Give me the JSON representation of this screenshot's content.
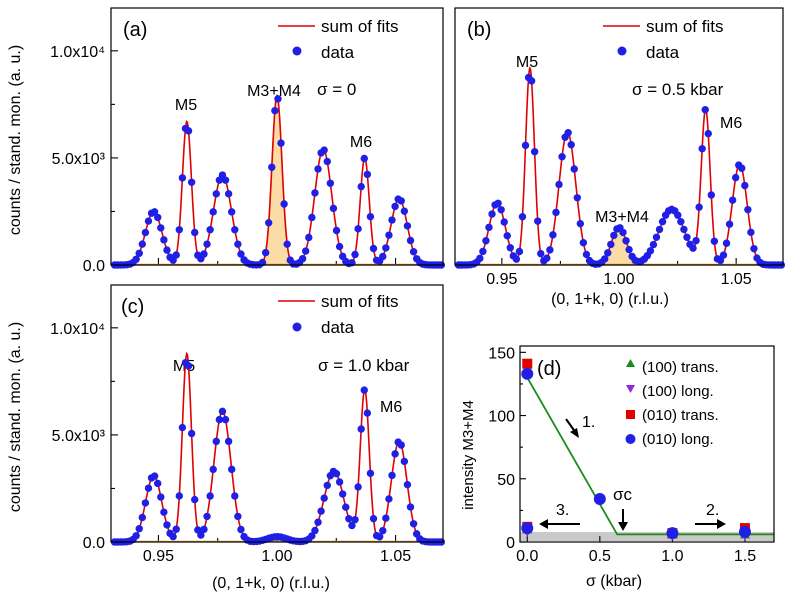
{
  "figure": {
    "y_axis_title": "counts / stand. mon. (a. u.)",
    "legend": {
      "fit": "sum of fits",
      "data": "data"
    }
  },
  "chart_data": [
    {
      "id": "a",
      "type": "line",
      "label": "(a)",
      "annotation": "σ = 0",
      "xlim": [
        0.93,
        1.07
      ],
      "ylim": [
        0,
        12000
      ],
      "yticks": [
        0,
        5000,
        10000
      ],
      "ytick_labels": [
        "0.0",
        "5.0x10³",
        "1.0x10⁴"
      ],
      "peaks": [
        {
          "label": "M5",
          "x": 0.962,
          "y": 7000
        },
        {
          "label": "M3+M4",
          "x": 1.0,
          "y": 8000
        },
        {
          "label": "M6",
          "x": 1.037,
          "y": 5300
        }
      ],
      "components": [
        {
          "center": 0.948,
          "height": 2500,
          "sigma": 0.0035
        },
        {
          "center": 0.962,
          "height": 6700,
          "sigma": 0.0019
        },
        {
          "center": 0.977,
          "height": 4200,
          "sigma": 0.0038
        },
        {
          "center": 1.0,
          "height": 7900,
          "sigma": 0.0021,
          "shaded": true
        },
        {
          "center": 1.0195,
          "height": 5400,
          "sigma": 0.0036
        },
        {
          "center": 1.037,
          "height": 5000,
          "sigma": 0.0019
        },
        {
          "center": 1.0515,
          "height": 3100,
          "sigma": 0.0034
        }
      ]
    },
    {
      "id": "b",
      "type": "line",
      "label": "(b)",
      "annotation": "σ = 0.5 kbar",
      "xlim": [
        0.93,
        1.07
      ],
      "ylim": [
        0,
        12000
      ],
      "xticks": [
        0.95,
        1.0,
        1.05
      ],
      "xtick_labels": [
        "0.95",
        "1.00",
        "1.05"
      ],
      "xlabel": "(0, 1+k, 0) (r.l.u.)",
      "peaks": [
        {
          "label": "M5",
          "x": 0.962,
          "y": 9500
        },
        {
          "label": "M3+M4",
          "x": 1.0,
          "y": 1800
        },
        {
          "label": "M6",
          "x": 1.037,
          "y": 7400
        }
      ],
      "components": [
        {
          "center": 0.948,
          "height": 2900,
          "sigma": 0.0035
        },
        {
          "center": 0.962,
          "height": 9200,
          "sigma": 0.0019
        },
        {
          "center": 0.978,
          "height": 6200,
          "sigma": 0.0036
        },
        {
          "center": 1.0,
          "height": 1750,
          "sigma": 0.0032,
          "shaded": true
        },
        {
          "center": 1.0225,
          "height": 2600,
          "sigma": 0.0055
        },
        {
          "center": 1.037,
          "height": 7200,
          "sigma": 0.0019
        },
        {
          "center": 1.0515,
          "height": 4700,
          "sigma": 0.0032
        }
      ]
    },
    {
      "id": "c",
      "type": "line",
      "label": "(c)",
      "annotation": "σ = 1.0 kbar",
      "xlim": [
        0.93,
        1.07
      ],
      "ylim": [
        0,
        12000
      ],
      "yticks": [
        0,
        5000,
        10000
      ],
      "ytick_labels": [
        "0.0",
        "5.0x10³",
        "1.0x10⁴"
      ],
      "xticks": [
        0.95,
        1.0,
        1.05
      ],
      "xtick_labels": [
        "0.95",
        "1.00",
        "1.05"
      ],
      "xlabel": "(0, 1+k, 0) (r.l.u.)",
      "peaks": [
        {
          "label": "M5",
          "x": 0.962,
          "y": 9000
        },
        {
          "label": "M6",
          "x": 1.037,
          "y": 7500
        }
      ],
      "components": [
        {
          "center": 0.948,
          "height": 3100,
          "sigma": 0.0034
        },
        {
          "center": 0.962,
          "height": 8800,
          "sigma": 0.0019
        },
        {
          "center": 0.977,
          "height": 6100,
          "sigma": 0.0036
        },
        {
          "center": 1.0,
          "height": 250,
          "sigma": 0.004
        },
        {
          "center": 1.024,
          "height": 3300,
          "sigma": 0.0042
        },
        {
          "center": 1.037,
          "height": 7100,
          "sigma": 0.0019
        },
        {
          "center": 1.0515,
          "height": 4700,
          "sigma": 0.0033
        }
      ]
    },
    {
      "id": "d",
      "type": "scatter",
      "label": "(d)",
      "xlabel": "σ (kbar)",
      "ylabel": "intensity M3+M4",
      "xlim": [
        -0.05,
        1.7
      ],
      "ylim": [
        0,
        155
      ],
      "xticks": [
        0.0,
        0.5,
        1.0,
        1.5
      ],
      "xtick_labels": [
        "0.0",
        "0.5",
        "1.0",
        "1.5"
      ],
      "yticks": [
        0,
        50,
        100,
        150
      ],
      "ytick_labels": [
        "0",
        "50",
        "100",
        "150"
      ],
      "series": [
        {
          "name": "(100) trans.",
          "marker": "triangle-up",
          "color": "#1a8c1a",
          "points": [
            [
              0.0,
              10
            ],
            [
              1.0,
              6
            ],
            [
              1.5,
              6
            ]
          ]
        },
        {
          "name": "(100) long.",
          "marker": "triangle-down",
          "color": "#8b2be2",
          "points": [
            [
              0.0,
              8
            ],
            [
              1.0,
              5
            ],
            [
              1.5,
              5
            ]
          ]
        },
        {
          "name": "(010) trans.",
          "marker": "square",
          "color": "#e00000",
          "points": [
            [
              0.0,
              141
            ],
            [
              0.0,
              12
            ],
            [
              1.0,
              7
            ],
            [
              1.5,
              11
            ]
          ]
        },
        {
          "name": "(010) long.",
          "marker": "circle",
          "color": "#1f1fe6",
          "points": [
            [
              0.0,
              133
            ],
            [
              0.5,
              34
            ],
            [
              0.0,
              11
            ],
            [
              1.0,
              7
            ],
            [
              1.5,
              8
            ]
          ]
        }
      ],
      "guide_line": [
        [
          0.0,
          130
        ],
        [
          0.62,
          6
        ],
        [
          1.7,
          6
        ]
      ],
      "band": [
        0,
        6
      ],
      "annotations": [
        {
          "text": "1.",
          "arrow": "down-right",
          "near": [
            0.28,
            85
          ]
        },
        {
          "text": "2.",
          "arrow": "right",
          "near": [
            1.35,
            17
          ]
        },
        {
          "text": "3.",
          "arrow": "left",
          "near": [
            0.2,
            17
          ]
        },
        {
          "text": "σc",
          "arrow": "down",
          "near": [
            0.62,
            35
          ]
        }
      ]
    }
  ]
}
